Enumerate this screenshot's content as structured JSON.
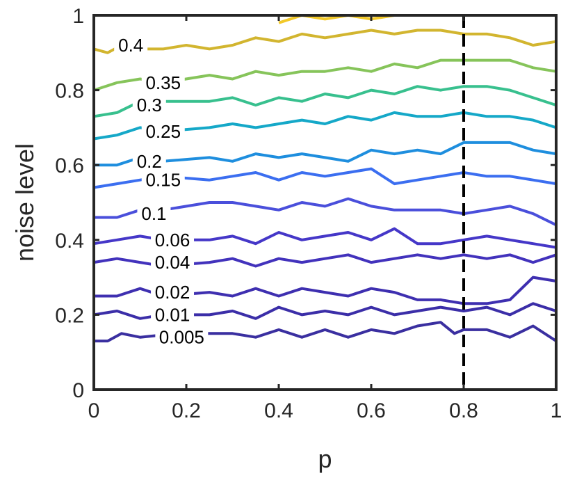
{
  "chart_data": {
    "type": "contour",
    "xlabel": "p",
    "ylabel": "noise level",
    "xlim": [
      0,
      1
    ],
    "ylim": [
      0,
      1
    ],
    "x_ticks": [
      "0",
      "0.2",
      "0.4",
      "0.6",
      "0.8",
      "1"
    ],
    "y_ticks": [
      "0",
      "0.2",
      "0.4",
      "0.6",
      "0.8",
      "1"
    ],
    "grid": false,
    "reference_line": {
      "x": 0.8,
      "style": "dashed",
      "color": "#000000"
    },
    "contours": [
      {
        "label": "0.005",
        "color": "#3a2fa0",
        "label_at": [
          0.19,
          0.14
        ],
        "points": [
          [
            0,
            0.13
          ],
          [
            0.03,
            0.13
          ],
          [
            0.06,
            0.15
          ],
          [
            0.1,
            0.14
          ],
          [
            0.18,
            0.15
          ],
          [
            0.3,
            0.15
          ],
          [
            0.35,
            0.14
          ],
          [
            0.4,
            0.16
          ],
          [
            0.45,
            0.14
          ],
          [
            0.5,
            0.16
          ],
          [
            0.55,
            0.14
          ],
          [
            0.6,
            0.16
          ],
          [
            0.65,
            0.15
          ],
          [
            0.7,
            0.17
          ],
          [
            0.75,
            0.18
          ],
          [
            0.78,
            0.15
          ],
          [
            0.8,
            0.16
          ],
          [
            0.85,
            0.16
          ],
          [
            0.9,
            0.14
          ],
          [
            0.95,
            0.17
          ],
          [
            1,
            0.13
          ]
        ]
      },
      {
        "label": "0.01",
        "color": "#3b2ea8",
        "label_at": [
          0.17,
          0.2
        ],
        "points": [
          [
            0,
            0.2
          ],
          [
            0.05,
            0.21
          ],
          [
            0.1,
            0.19
          ],
          [
            0.15,
            0.2
          ],
          [
            0.25,
            0.2
          ],
          [
            0.3,
            0.21
          ],
          [
            0.35,
            0.19
          ],
          [
            0.4,
            0.22
          ],
          [
            0.45,
            0.2
          ],
          [
            0.5,
            0.21
          ],
          [
            0.55,
            0.2
          ],
          [
            0.6,
            0.22
          ],
          [
            0.65,
            0.2
          ],
          [
            0.7,
            0.21
          ],
          [
            0.75,
            0.22
          ],
          [
            0.8,
            0.21
          ],
          [
            0.85,
            0.22
          ],
          [
            0.9,
            0.2
          ],
          [
            0.95,
            0.23
          ],
          [
            1,
            0.21
          ]
        ]
      },
      {
        "label": "0.02",
        "color": "#3e2fb0",
        "label_at": [
          0.17,
          0.26
        ],
        "points": [
          [
            0,
            0.25
          ],
          [
            0.05,
            0.25
          ],
          [
            0.1,
            0.27
          ],
          [
            0.15,
            0.25
          ],
          [
            0.25,
            0.26
          ],
          [
            0.3,
            0.25
          ],
          [
            0.35,
            0.27
          ],
          [
            0.4,
            0.25
          ],
          [
            0.45,
            0.27
          ],
          [
            0.5,
            0.26
          ],
          [
            0.55,
            0.25
          ],
          [
            0.6,
            0.27
          ],
          [
            0.65,
            0.26
          ],
          [
            0.7,
            0.24
          ],
          [
            0.75,
            0.24
          ],
          [
            0.8,
            0.23
          ],
          [
            0.85,
            0.23
          ],
          [
            0.9,
            0.24
          ],
          [
            0.95,
            0.3
          ],
          [
            1,
            0.29
          ]
        ]
      },
      {
        "label": "0.04",
        "color": "#4232bc",
        "label_at": [
          0.17,
          0.34
        ],
        "points": [
          [
            0,
            0.34
          ],
          [
            0.05,
            0.35
          ],
          [
            0.1,
            0.34
          ],
          [
            0.15,
            0.33
          ],
          [
            0.25,
            0.34
          ],
          [
            0.3,
            0.35
          ],
          [
            0.35,
            0.33
          ],
          [
            0.4,
            0.35
          ],
          [
            0.45,
            0.34
          ],
          [
            0.5,
            0.35
          ],
          [
            0.55,
            0.36
          ],
          [
            0.6,
            0.34
          ],
          [
            0.65,
            0.35
          ],
          [
            0.7,
            0.36
          ],
          [
            0.75,
            0.35
          ],
          [
            0.8,
            0.36
          ],
          [
            0.85,
            0.35
          ],
          [
            0.9,
            0.36
          ],
          [
            0.95,
            0.34
          ],
          [
            1,
            0.36
          ]
        ]
      },
      {
        "label": "0.06",
        "color": "#4537c8",
        "label_at": [
          0.17,
          0.4
        ],
        "points": [
          [
            0,
            0.39
          ],
          [
            0.05,
            0.4
          ],
          [
            0.1,
            0.41
          ],
          [
            0.15,
            0.4
          ],
          [
            0.25,
            0.4
          ],
          [
            0.3,
            0.41
          ],
          [
            0.35,
            0.39
          ],
          [
            0.4,
            0.42
          ],
          [
            0.45,
            0.4
          ],
          [
            0.5,
            0.41
          ],
          [
            0.55,
            0.42
          ],
          [
            0.6,
            0.4
          ],
          [
            0.65,
            0.43
          ],
          [
            0.7,
            0.39
          ],
          [
            0.75,
            0.39
          ],
          [
            0.8,
            0.4
          ],
          [
            0.85,
            0.41
          ],
          [
            0.9,
            0.4
          ],
          [
            0.95,
            0.39
          ],
          [
            1,
            0.38
          ]
        ]
      },
      {
        "label": "0.1",
        "color": "#4a4fdb",
        "label_at": [
          0.13,
          0.47
        ],
        "points": [
          [
            0,
            0.46
          ],
          [
            0.05,
            0.46
          ],
          [
            0.1,
            0.48
          ],
          [
            0.15,
            0.48
          ],
          [
            0.25,
            0.5
          ],
          [
            0.3,
            0.5
          ],
          [
            0.35,
            0.49
          ],
          [
            0.4,
            0.48
          ],
          [
            0.45,
            0.5
          ],
          [
            0.5,
            0.49
          ],
          [
            0.55,
            0.51
          ],
          [
            0.6,
            0.49
          ],
          [
            0.65,
            0.48
          ],
          [
            0.7,
            0.48
          ],
          [
            0.75,
            0.48
          ],
          [
            0.8,
            0.47
          ],
          [
            0.85,
            0.48
          ],
          [
            0.9,
            0.49
          ],
          [
            0.95,
            0.47
          ],
          [
            1,
            0.44
          ]
        ]
      },
      {
        "label": "0.15",
        "color": "#3b6ef0",
        "label_at": [
          0.15,
          0.56
        ],
        "points": [
          [
            0,
            0.54
          ],
          [
            0.05,
            0.55
          ],
          [
            0.1,
            0.56
          ],
          [
            0.15,
            0.57
          ],
          [
            0.25,
            0.56
          ],
          [
            0.3,
            0.57
          ],
          [
            0.35,
            0.58
          ],
          [
            0.4,
            0.56
          ],
          [
            0.45,
            0.58
          ],
          [
            0.5,
            0.57
          ],
          [
            0.55,
            0.58
          ],
          [
            0.6,
            0.59
          ],
          [
            0.65,
            0.55
          ],
          [
            0.7,
            0.56
          ],
          [
            0.75,
            0.57
          ],
          [
            0.8,
            0.58
          ],
          [
            0.85,
            0.57
          ],
          [
            0.9,
            0.57
          ],
          [
            0.95,
            0.56
          ],
          [
            1,
            0.55
          ]
        ]
      },
      {
        "label": "0.2",
        "color": "#1e8ede",
        "label_at": [
          0.12,
          0.61
        ],
        "points": [
          [
            0,
            0.6
          ],
          [
            0.05,
            0.6
          ],
          [
            0.1,
            0.62
          ],
          [
            0.15,
            0.61
          ],
          [
            0.25,
            0.62
          ],
          [
            0.3,
            0.61
          ],
          [
            0.35,
            0.63
          ],
          [
            0.4,
            0.62
          ],
          [
            0.45,
            0.63
          ],
          [
            0.5,
            0.62
          ],
          [
            0.55,
            0.61
          ],
          [
            0.6,
            0.64
          ],
          [
            0.65,
            0.63
          ],
          [
            0.7,
            0.64
          ],
          [
            0.75,
            0.63
          ],
          [
            0.8,
            0.66
          ],
          [
            0.85,
            0.66
          ],
          [
            0.9,
            0.66
          ],
          [
            0.95,
            0.64
          ],
          [
            1,
            0.63
          ]
        ]
      },
      {
        "label": "0.25",
        "color": "#15a8c8",
        "label_at": [
          0.15,
          0.69
        ],
        "points": [
          [
            0,
            0.67
          ],
          [
            0.05,
            0.68
          ],
          [
            0.1,
            0.7
          ],
          [
            0.15,
            0.69
          ],
          [
            0.25,
            0.7
          ],
          [
            0.3,
            0.71
          ],
          [
            0.35,
            0.7
          ],
          [
            0.4,
            0.71
          ],
          [
            0.45,
            0.72
          ],
          [
            0.5,
            0.71
          ],
          [
            0.55,
            0.73
          ],
          [
            0.6,
            0.72
          ],
          [
            0.65,
            0.74
          ],
          [
            0.7,
            0.73
          ],
          [
            0.75,
            0.73
          ],
          [
            0.8,
            0.74
          ],
          [
            0.85,
            0.73
          ],
          [
            0.9,
            0.73
          ],
          [
            0.95,
            0.72
          ],
          [
            1,
            0.7
          ]
        ]
      },
      {
        "label": "0.3",
        "color": "#38c08e",
        "label_at": [
          0.12,
          0.76
        ],
        "points": [
          [
            0,
            0.73
          ],
          [
            0.05,
            0.74
          ],
          [
            0.1,
            0.77
          ],
          [
            0.15,
            0.77
          ],
          [
            0.25,
            0.77
          ],
          [
            0.3,
            0.78
          ],
          [
            0.35,
            0.76
          ],
          [
            0.4,
            0.78
          ],
          [
            0.45,
            0.77
          ],
          [
            0.5,
            0.79
          ],
          [
            0.55,
            0.78
          ],
          [
            0.6,
            0.8
          ],
          [
            0.65,
            0.79
          ],
          [
            0.7,
            0.81
          ],
          [
            0.75,
            0.8
          ],
          [
            0.8,
            0.81
          ],
          [
            0.85,
            0.81
          ],
          [
            0.9,
            0.8
          ],
          [
            0.95,
            0.78
          ],
          [
            1,
            0.76
          ]
        ]
      },
      {
        "label": "0.35",
        "color": "#86c45a",
        "label_at": [
          0.15,
          0.82
        ],
        "points": [
          [
            0,
            0.8
          ],
          [
            0.05,
            0.82
          ],
          [
            0.1,
            0.83
          ],
          [
            0.15,
            0.82
          ],
          [
            0.25,
            0.84
          ],
          [
            0.3,
            0.83
          ],
          [
            0.35,
            0.85
          ],
          [
            0.4,
            0.84
          ],
          [
            0.45,
            0.85
          ],
          [
            0.5,
            0.85
          ],
          [
            0.55,
            0.86
          ],
          [
            0.6,
            0.85
          ],
          [
            0.65,
            0.87
          ],
          [
            0.7,
            0.86
          ],
          [
            0.75,
            0.88
          ],
          [
            0.8,
            0.88
          ],
          [
            0.85,
            0.88
          ],
          [
            0.9,
            0.88
          ],
          [
            0.95,
            0.86
          ],
          [
            1,
            0.85
          ]
        ]
      },
      {
        "label": "0.4",
        "color": "#d2b52f",
        "label_at": [
          0.08,
          0.92
        ],
        "points": [
          [
            0,
            0.91
          ],
          [
            0.03,
            0.9
          ],
          [
            0.06,
            0.92
          ],
          [
            0.1,
            0.91
          ],
          [
            0.15,
            0.91
          ],
          [
            0.2,
            0.92
          ],
          [
            0.25,
            0.91
          ],
          [
            0.3,
            0.92
          ],
          [
            0.35,
            0.94
          ],
          [
            0.4,
            0.93
          ],
          [
            0.45,
            0.95
          ],
          [
            0.5,
            0.94
          ],
          [
            0.55,
            0.95
          ],
          [
            0.6,
            0.96
          ],
          [
            0.65,
            0.95
          ],
          [
            0.7,
            0.96
          ],
          [
            0.75,
            0.96
          ],
          [
            0.8,
            0.95
          ],
          [
            0.85,
            0.95
          ],
          [
            0.9,
            0.94
          ],
          [
            0.95,
            0.92
          ],
          [
            1,
            0.93
          ]
        ]
      },
      {
        "label": "",
        "color": "#f2c92a",
        "points": [
          [
            0.4,
            0.98
          ],
          [
            0.45,
            1.0
          ],
          [
            0.5,
            0.99
          ],
          [
            0.55,
            1.0
          ],
          [
            0.6,
            0.99
          ],
          [
            0.65,
            1.0
          ]
        ]
      }
    ]
  }
}
